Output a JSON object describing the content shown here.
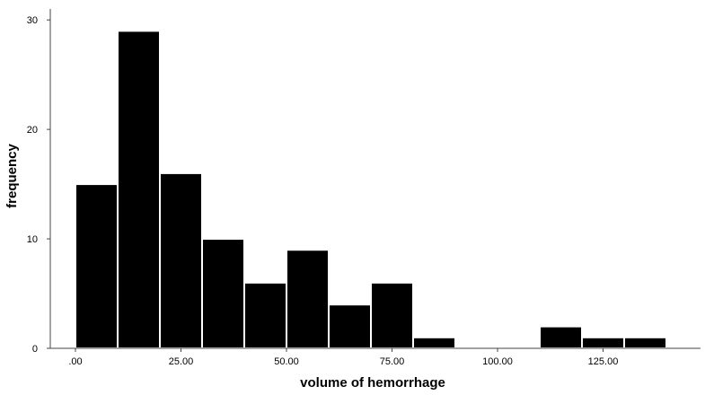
{
  "chart_data": {
    "type": "bar",
    "subtype": "histogram",
    "xlabel": "volume of hemorrhage",
    "ylabel": "frequency",
    "x_ticks": [
      0,
      25,
      50,
      75,
      100,
      125
    ],
    "x_tick_labels": [
      ".00",
      "25.00",
      "50.00",
      "75.00",
      "100.00",
      "125.00"
    ],
    "y_ticks": [
      0,
      10,
      20,
      30
    ],
    "y_tick_labels": [
      "0",
      "10",
      "20",
      "30"
    ],
    "xlim": [
      -5,
      148
    ],
    "ylim": [
      0,
      31
    ],
    "bins": [
      {
        "start": 0,
        "end": 10,
        "count": 15
      },
      {
        "start": 10,
        "end": 20,
        "count": 29
      },
      {
        "start": 20,
        "end": 30,
        "count": 16
      },
      {
        "start": 30,
        "end": 40,
        "count": 10
      },
      {
        "start": 40,
        "end": 50,
        "count": 6
      },
      {
        "start": 50,
        "end": 60,
        "count": 9
      },
      {
        "start": 60,
        "end": 70,
        "count": 4
      },
      {
        "start": 70,
        "end": 80,
        "count": 6
      },
      {
        "start": 80,
        "end": 90,
        "count": 1
      },
      {
        "start": 90,
        "end": 100,
        "count": 0
      },
      {
        "start": 100,
        "end": 110,
        "count": 0
      },
      {
        "start": 110,
        "end": 120,
        "count": 2
      },
      {
        "start": 120,
        "end": 130,
        "count": 1
      },
      {
        "start": 130,
        "end": 140,
        "count": 1
      }
    ],
    "bar_color": "#000000",
    "bar_edge_color": "#ffffff",
    "grid": false,
    "legend": "none"
  }
}
